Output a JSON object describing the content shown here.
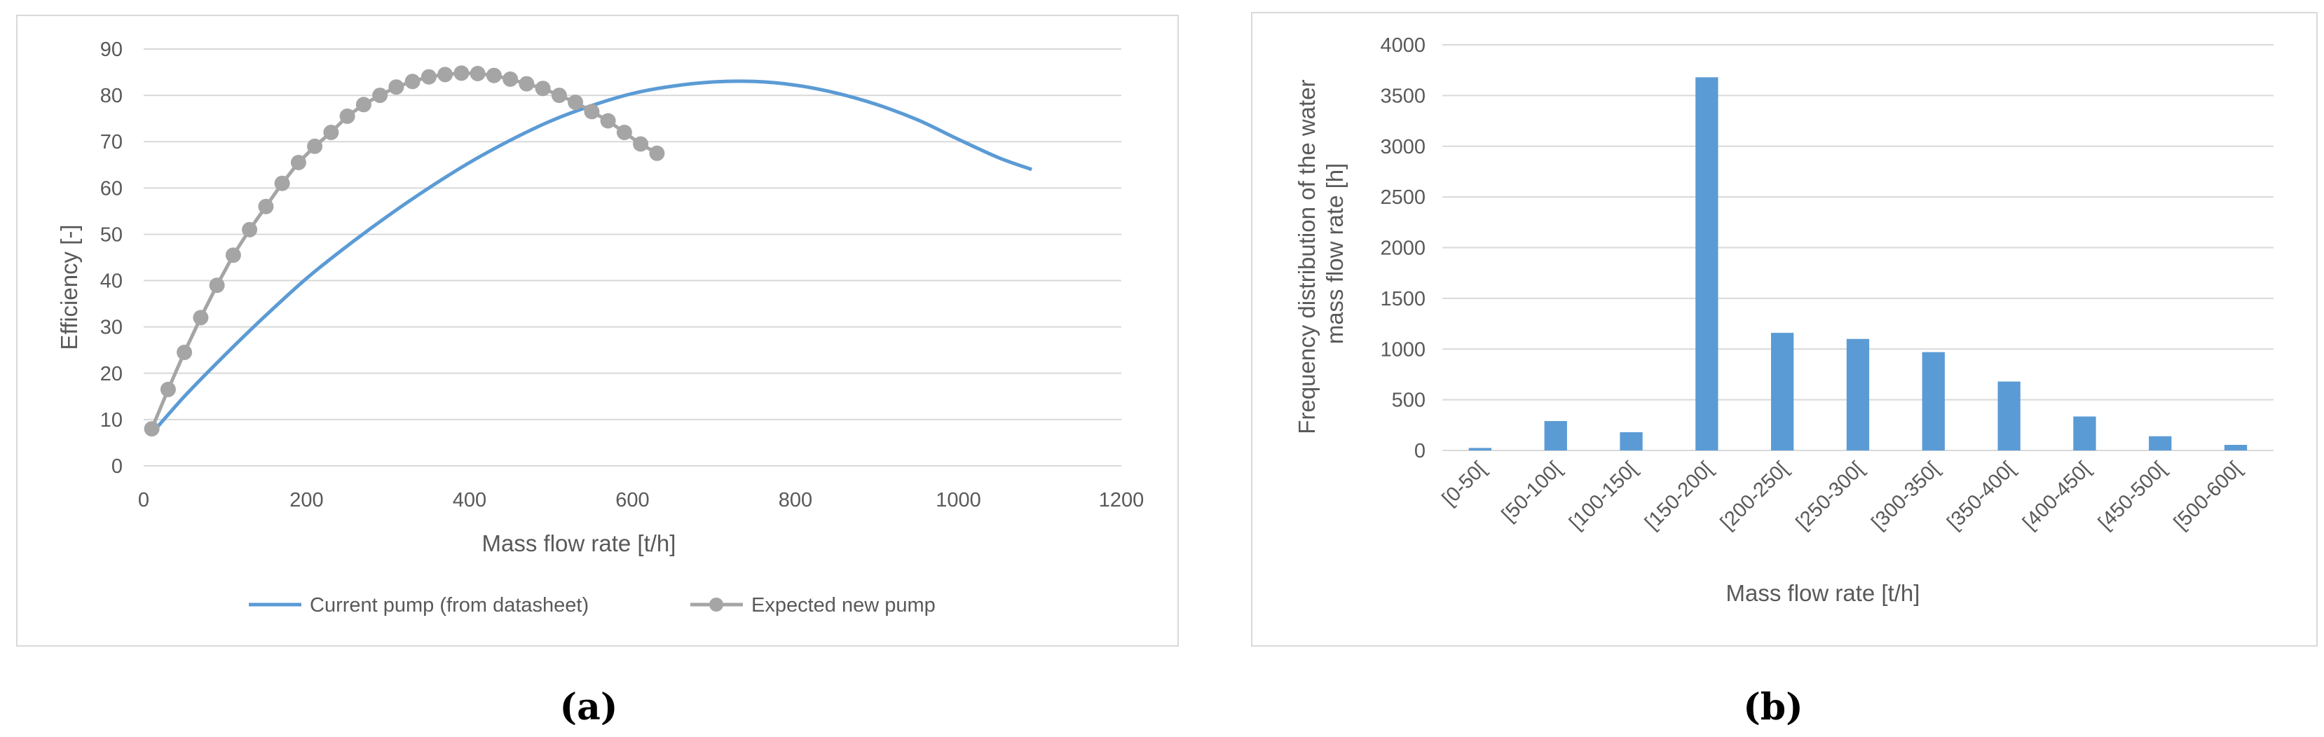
{
  "panels": {
    "a": {
      "caption": "(a)"
    },
    "b": {
      "caption": "(b)"
    }
  },
  "colors": {
    "blue": "#5b9bd5",
    "gray": "#a5a5a5",
    "grid": "#d9d9d9",
    "frame": "#d9d9d9",
    "text": "#595959"
  },
  "chart_data": [
    {
      "type": "line",
      "panel": "a",
      "title": "",
      "xlabel": "Mass flow rate [t/h]",
      "ylabel": "Efficiency [-]",
      "xlim": [
        0,
        1200
      ],
      "ylim": [
        0,
        90
      ],
      "xticks": [
        0,
        200,
        400,
        600,
        800,
        1000,
        1200
      ],
      "yticks": [
        0,
        10,
        20,
        30,
        40,
        50,
        60,
        70,
        80,
        90
      ],
      "grid": "horizontal",
      "legend": "bottom",
      "series": [
        {
          "name": "Current pump (from datasheet)",
          "color": "#5b9bd5",
          "markers": false,
          "x": [
            10,
            50,
            100,
            150,
            200,
            250,
            300,
            350,
            400,
            450,
            500,
            550,
            600,
            650,
            700,
            750,
            800,
            850,
            900,
            950,
            1000,
            1050,
            1090
          ],
          "y": [
            7,
            15,
            24,
            32.5,
            40.5,
            47.5,
            54,
            60,
            65.5,
            70.3,
            74.5,
            77.8,
            80.4,
            82,
            82.9,
            83,
            82.2,
            80.5,
            78,
            74.7,
            70.5,
            66.5,
            64
          ]
        },
        {
          "name": "Expected new pump",
          "color": "#a5a5a5",
          "markers": true,
          "x": [
            10,
            30,
            50,
            70,
            90,
            110,
            130,
            150,
            170,
            190,
            210,
            230,
            250,
            270,
            290,
            310,
            330,
            350,
            370,
            390,
            410,
            430,
            450,
            470,
            490,
            510,
            530,
            550,
            570,
            590,
            610,
            630
          ],
          "y": [
            8,
            16.5,
            24.5,
            32,
            39,
            45.5,
            51,
            56,
            61,
            65.5,
            69,
            72,
            75.5,
            78,
            80,
            81.8,
            83,
            84,
            84.5,
            84.8,
            84.7,
            84.3,
            83.5,
            82.5,
            81.5,
            80,
            78.5,
            76.5,
            74.5,
            72,
            69.5,
            67.5
          ]
        }
      ]
    },
    {
      "type": "bar",
      "panel": "b",
      "title": "",
      "xlabel": "Mass flow rate [t/h]",
      "ylabel": "Frequency distribution of the water mass flow rate [h]",
      "ylabel_lines": [
        "Frequency distribution of the water",
        "mass flow rate [h]"
      ],
      "ylim": [
        0,
        4000
      ],
      "yticks": [
        0,
        500,
        1000,
        1500,
        2000,
        2500,
        3000,
        3500,
        4000
      ],
      "grid": "horizontal",
      "categories": [
        "[0-50[",
        "[50-100[",
        "[100-150[",
        "[150-200[",
        "[200-250[",
        "[250-300[",
        "[300-350[",
        "[350-400[",
        "[400-450[",
        "[450-500[",
        "[500-600["
      ],
      "values": [
        25,
        290,
        180,
        3680,
        1160,
        1100,
        970,
        680,
        335,
        140,
        55
      ],
      "color": "#5b9bd5"
    }
  ]
}
